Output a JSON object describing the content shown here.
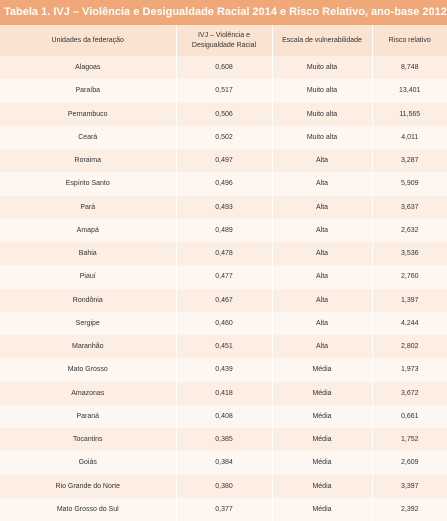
{
  "title": "Tabela 1. IVJ – Violência e Desigualdade Racial 2014 e Risco Relativo, ano-base 2012.",
  "headers": [
    "Unidades da federação",
    "IVJ – Violência e Desigualdade Racial",
    "Escala de vulnerabilidade",
    "Risco relativo"
  ],
  "rows": [
    [
      "Alagoas",
      "0,608",
      "Muito alta",
      "8,748"
    ],
    [
      "Paraíba",
      "0,517",
      "Muito alta",
      "13,401"
    ],
    [
      "Pernambuco",
      "0,506",
      "Muito alta",
      "11,565"
    ],
    [
      "Ceará",
      "0,502",
      "Muito alta",
      "4,011"
    ],
    [
      "Roraima",
      "0,497",
      "Alta",
      "3,287"
    ],
    [
      "Espírito Santo",
      "0,496",
      "Alta",
      "5,909"
    ],
    [
      "Pará",
      "0,493",
      "Alta",
      "3,637"
    ],
    [
      "Amapá",
      "0,489",
      "Alta",
      "2,632"
    ],
    [
      "Bahia",
      "0,478",
      "Alta",
      "3,536"
    ],
    [
      "Piauí",
      "0,477",
      "Alta",
      "2,760"
    ],
    [
      "Rondônia",
      "0,467",
      "Alta",
      "1,397"
    ],
    [
      "Sergipe",
      "0,460",
      "Alta",
      "4,244"
    ],
    [
      "Maranhão",
      "0,451",
      "Alta",
      "2,802"
    ],
    [
      "Mato Grosso",
      "0,439",
      "Média",
      "1,973"
    ],
    [
      "Amazonas",
      "0,418",
      "Média",
      "3,672"
    ],
    [
      "Paraná",
      "0,408",
      "Média",
      "0,661"
    ],
    [
      "Tocantins",
      "0,385",
      "Média",
      "1,752"
    ],
    [
      "Goiás",
      "0,384",
      "Média",
      "2,609"
    ],
    [
      "Rio Grande do Norte",
      "0,380",
      "Média",
      "3,397"
    ],
    [
      "Mato Grosso do Sul",
      "0,377",
      "Média",
      "2,392"
    ]
  ]
}
